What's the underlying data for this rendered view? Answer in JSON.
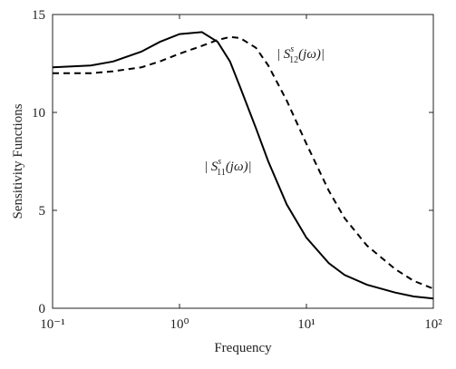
{
  "chart_data": {
    "type": "line",
    "xlabel": "Frequency",
    "ylabel": "Sensitivity Functions",
    "xscale": "log",
    "x": [
      0.1,
      0.2,
      0.3,
      0.5,
      0.7,
      1,
      1.5,
      2,
      2.5,
      3,
      4,
      5,
      7,
      10,
      15,
      20,
      30,
      50,
      70,
      100
    ],
    "series": [
      {
        "color": "#000000",
        "dash": "solid",
        "values": [
          12.3,
          12.4,
          12.6,
          13.1,
          13.6,
          14.0,
          14.1,
          13.6,
          12.6,
          11.3,
          9.2,
          7.5,
          5.3,
          3.6,
          2.3,
          1.7,
          1.2,
          0.8,
          0.6,
          0.5
        ]
      },
      {
        "color": "#000000",
        "dash": "dashed",
        "values": [
          12.0,
          12.0,
          12.1,
          12.3,
          12.6,
          13.0,
          13.4,
          13.7,
          13.85,
          13.8,
          13.3,
          12.4,
          10.6,
          8.4,
          6.0,
          4.6,
          3.2,
          2.0,
          1.4,
          1.0
        ]
      }
    ],
    "annotations": [
      {
        "prefix": "| ",
        "symbol": "S",
        "sup": "s",
        "sub": "11",
        "suffix": "(jω)|"
      },
      {
        "prefix": "| ",
        "symbol": "S",
        "sup": "s",
        "sub": "12",
        "suffix": "(jω)|"
      }
    ],
    "xlim": [
      0.1,
      100
    ],
    "xticks": [
      {
        "value": 0.1,
        "label": "10⁻¹"
      },
      {
        "value": 1,
        "label": "10⁰"
      },
      {
        "value": 10,
        "label": "10¹"
      },
      {
        "value": 100,
        "label": "10²"
      }
    ],
    "ylim": [
      0,
      15
    ],
    "yticks": [
      0,
      5,
      10,
      15
    ]
  }
}
